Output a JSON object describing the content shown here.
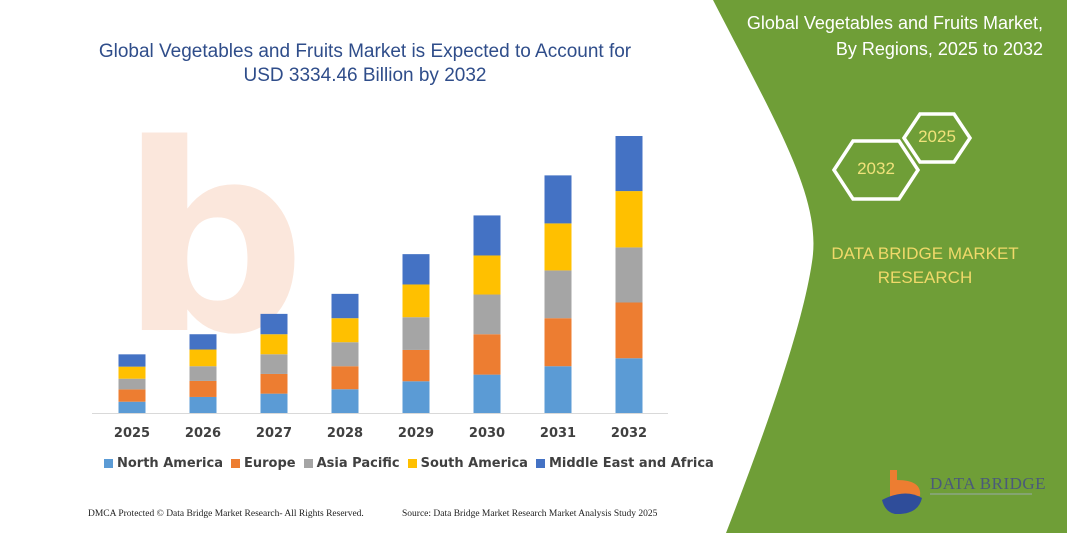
{
  "title": "Global Vegetables and Fruits Market is Expected to Account for USD 3334.46 Billion by 2032",
  "panel": {
    "title_line1": "Global Vegetables and Fruits Market,",
    "title_line2": "By Regions, 2025 to 2032",
    "hex_start": "2025",
    "hex_end": "2032",
    "brand_line1": "DATA BRIDGE MARKET",
    "brand_line2": "RESEARCH",
    "logo_text": "DATA BRIDGE",
    "green": "#6f9e37"
  },
  "footer": {
    "left": "DMCA Protected © Data Bridge Market Research-  All Rights Reserved.",
    "right": "Source: Data Bridge Market Research  Market Analysis Study 2025"
  },
  "chart_data": {
    "type": "bar",
    "stacked": true,
    "title": "Global Vegetables and Fruits Market is Expected to Account for USD 3334.46 Billion by 2032",
    "xlabel": "",
    "ylabel": "",
    "y_axis_shown": false,
    "grid": false,
    "legend_placement": "bottom",
    "categories": [
      "2025",
      "2026",
      "2027",
      "2028",
      "2029",
      "2030",
      "2031",
      "2032"
    ],
    "series": [
      {
        "name": "North America",
        "color": "#5b9bd5",
        "values": [
          136,
          193,
          233,
          286,
          382,
          462,
          563,
          659
        ]
      },
      {
        "name": "Europe",
        "color": "#ed7d31",
        "values": [
          148,
          193,
          237,
          277,
          377,
          486,
          578,
          671
        ]
      },
      {
        "name": "Asia Pacific",
        "color": "#a5a5a5",
        "values": [
          129,
          177,
          237,
          289,
          394,
          478,
          575,
          663
        ]
      },
      {
        "name": "South America",
        "color": "#ffc000",
        "values": [
          145,
          201,
          241,
          289,
          394,
          470,
          566,
          678
        ]
      },
      {
        "name": "Middle East and Africa",
        "color": "#4472c4",
        "values": [
          148,
          184,
          245,
          293,
          365,
          482,
          578,
          663
        ]
      }
    ]
  }
}
